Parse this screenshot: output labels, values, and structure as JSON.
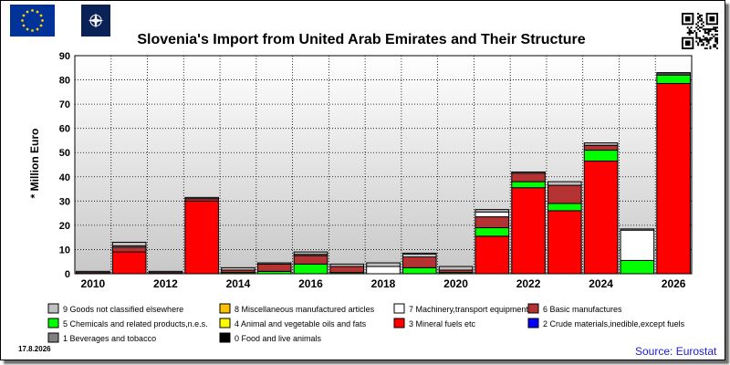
{
  "date_stamp": "17.8.2026",
  "source": "Source: Eurostat",
  "colors": {
    "cat9": "#c0c0c0",
    "cat8": "#ffc000",
    "cat7": "#ffffff",
    "cat6": "#b43232",
    "cat5": "#00ff00",
    "cat4": "#ffff00",
    "cat3": "#ff0000",
    "cat2": "#0000ff",
    "cat1": "#808080",
    "cat0": "#000000"
  },
  "chart_data": {
    "type": "bar",
    "stacked": true,
    "title": "Slovenia's Import from United Arab Emirates and Their Structure",
    "ylabel": "* Million Euro",
    "xlabel": "",
    "ylim": [
      0,
      90
    ],
    "yticks": [
      0,
      10,
      20,
      30,
      40,
      50,
      60,
      70,
      80,
      90
    ],
    "grid": true,
    "legend_position": "bottom",
    "categories": [
      "2010",
      "2011",
      "2012",
      "2013",
      "2014",
      "2015",
      "2016",
      "2017",
      "2018",
      "2019",
      "2020",
      "2021",
      "2022",
      "2023",
      "2024",
      "2025",
      "2026"
    ],
    "x_tick_labels": [
      "2010",
      "2012",
      "2014",
      "2016",
      "2018",
      "2020",
      "2022",
      "2024",
      "2026"
    ],
    "series": [
      {
        "name": "0 Food and live animals",
        "key": "cat0",
        "values": [
          0,
          0,
          0,
          0,
          0,
          0,
          0,
          0,
          0,
          0,
          0,
          0,
          0,
          0,
          0,
          0,
          0
        ]
      },
      {
        "name": "1 Beverages and tobacco",
        "key": "cat1",
        "values": [
          0,
          0,
          0,
          0,
          0,
          0,
          0,
          0,
          0,
          0,
          0,
          0,
          0,
          0,
          0,
          0,
          0
        ]
      },
      {
        "name": "2 Crude materials,inedible,except fuels",
        "key": "cat2",
        "values": [
          0,
          0,
          0,
          0,
          0,
          0,
          0,
          0,
          0,
          0,
          0,
          0,
          0,
          0,
          0,
          0,
          0
        ]
      },
      {
        "name": "3 Mineral fuels etc",
        "key": "cat3",
        "values": [
          0,
          9,
          0,
          30,
          0,
          0,
          0,
          0,
          0,
          0,
          0,
          15.5,
          35.5,
          26,
          46.5,
          0,
          78.5
        ]
      },
      {
        "name": "4 Animal and vegetable oils and fats",
        "key": "cat4",
        "values": [
          0,
          0,
          0,
          0,
          0,
          0,
          0,
          0,
          0,
          0,
          0,
          0,
          0,
          0,
          0,
          0,
          0
        ]
      },
      {
        "name": "5 Chemicals and related products,n.e.s.",
        "key": "cat5",
        "values": [
          0,
          0,
          0,
          0,
          0.5,
          1,
          4,
          0.5,
          0,
          2.5,
          0.5,
          3.5,
          2.5,
          3,
          4.5,
          5.5,
          3.5
        ]
      },
      {
        "name": "6 Basic manufactures",
        "key": "cat6",
        "values": [
          0.5,
          2,
          0.5,
          1,
          1,
          3,
          3.5,
          2.5,
          0,
          4.5,
          1,
          4.5,
          3.5,
          7.5,
          2,
          0,
          0
        ]
      },
      {
        "name": "7 Machinery,transport equipment",
        "key": "cat7",
        "values": [
          0,
          0.5,
          0,
          0,
          0,
          0,
          0.5,
          0,
          3,
          1,
          0,
          2,
          0,
          0,
          0,
          12.5,
          0.5
        ]
      },
      {
        "name": "8 Miscellaneous manufactured articles",
        "key": "cat8",
        "values": [
          0,
          0,
          0,
          0,
          0,
          0,
          0,
          0,
          0,
          0,
          0,
          0,
          0,
          0,
          0,
          0,
          0
        ]
      },
      {
        "name": "9 Goods not classified elsewhere",
        "key": "cat9",
        "values": [
          0.5,
          1.5,
          0.5,
          0.5,
          1,
          0.5,
          1,
          1,
          1.5,
          0.5,
          1.5,
          1,
          0.5,
          1.5,
          1,
          0.5,
          0.5
        ]
      }
    ],
    "legend_rows": [
      [
        "9 Goods not classified elsewhere",
        "8 Miscellaneous manufactured articles",
        "7 Machinery,transport equipment",
        "6 Basic manufactures"
      ],
      [
        "5 Chemicals and related products,n.e.s.",
        "4 Animal and vegetable oils and fats",
        "3 Mineral fuels etc",
        "2 Crude materials,inedible,except fuels"
      ],
      [
        "1 Beverages and tobacco",
        "0 Food and live animals"
      ]
    ],
    "legend_keys": [
      [
        "cat9",
        "cat8",
        "cat7",
        "cat6"
      ],
      [
        "cat5",
        "cat4",
        "cat3",
        "cat2"
      ],
      [
        "cat1",
        "cat0"
      ]
    ]
  }
}
